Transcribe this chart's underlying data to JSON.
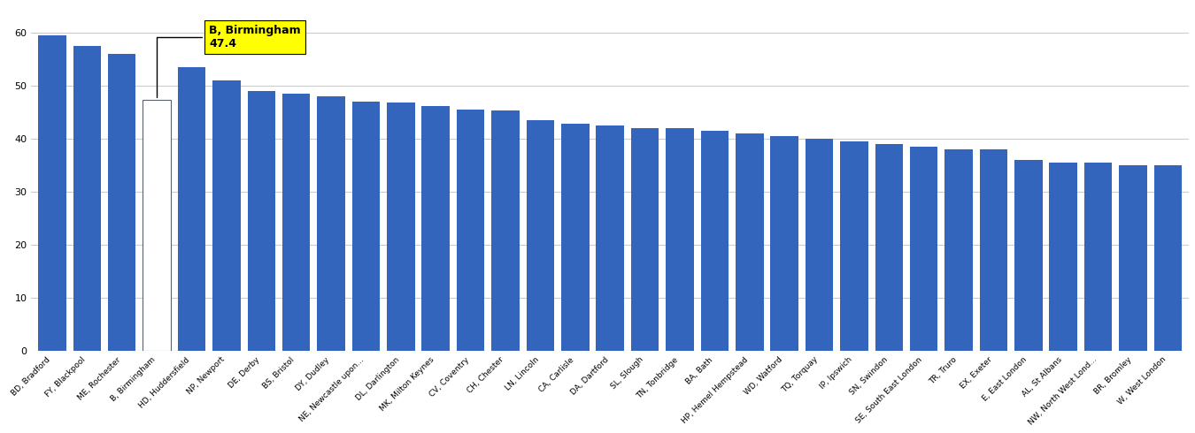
{
  "categories": [
    "BD, Bradford",
    "FY, Blackpool",
    "ME, Rochester",
    "B, Birmingham",
    "HD, Huddersfield",
    "NP, Newport",
    "DE, Derby",
    "BS, Bristol",
    "DY, Dudley",
    "NE, Newcastle upon...",
    "DL, Darlington",
    "MK, Milton Keynes",
    "CV, Coventry",
    "CH, Chester",
    "LN, Lincoln",
    "CA, Carlisle",
    "DA, Dartford",
    "SL, Slough",
    "TN, Tonbridge",
    "BA, Bath",
    "HP, Hemel Hempstead",
    "WD, Watford",
    "TQ, Torquay",
    "IP, Ipswich",
    "SN, Swindon",
    "SE, South East London",
    "TR, Truro",
    "EX, Exeter",
    "E, East London",
    "AL, St Albans",
    "NW, North West Lond...",
    "BR, Bromley",
    "W, West London"
  ],
  "values": [
    59.5,
    57.5,
    56.0,
    47.4,
    53.5,
    51.0,
    49.0,
    48.5,
    48.0,
    47.0,
    46.8,
    46.2,
    45.5,
    45.3,
    43.5,
    42.8,
    42.5,
    42.0,
    42.0,
    41.5,
    41.0,
    40.5,
    40.0,
    39.5,
    39.0,
    38.5,
    38.0,
    38.0,
    36.0,
    35.5,
    35.5,
    35.0,
    35.0
  ],
  "highlight_index": 3,
  "highlight_label": "B, Birmingham\n47.4",
  "bar_color": "#3465bd",
  "highlight_bar_color": "#ffffff",
  "highlight_box_color": "#ffff00",
  "background_color": "#ffffff",
  "grid_color": "#cccccc",
  "yticks": [
    0,
    10,
    20,
    30,
    40,
    50,
    60
  ],
  "ylim": [
    0,
    65
  ]
}
